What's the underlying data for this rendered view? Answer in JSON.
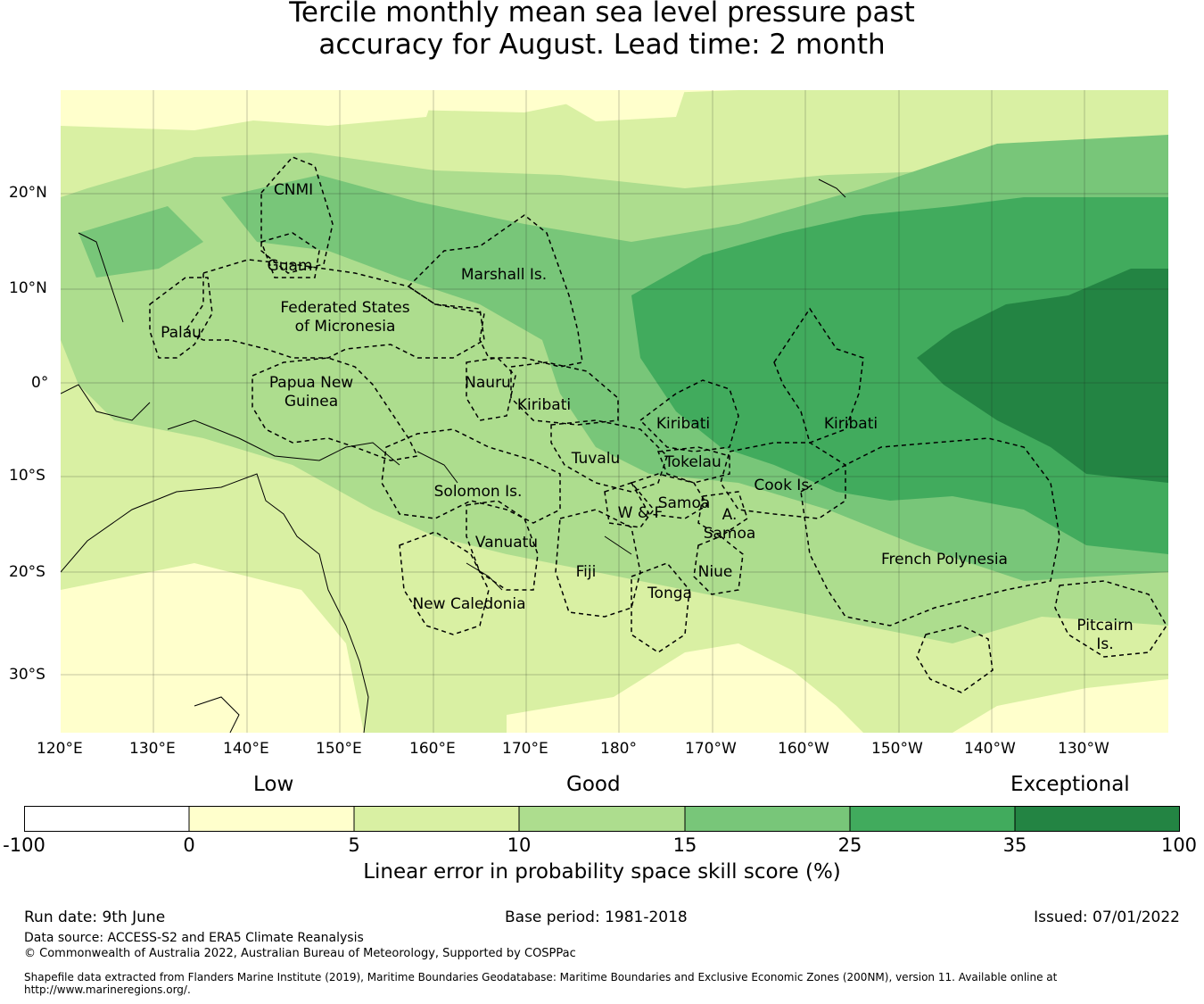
{
  "title": {
    "line1": "Tercile monthly mean sea level pressure past",
    "line2": "accuracy for August. Lead time: 2 month"
  },
  "map": {
    "lon_labels": [
      "120°E",
      "130°E",
      "140°E",
      "150°E",
      "160°E",
      "170°E",
      "180°",
      "170°W",
      "160°W",
      "150°W",
      "140°W",
      "130°W"
    ],
    "lat_labels": [
      "20°N",
      "10°N",
      "0°",
      "10°S",
      "20°S",
      "30°S"
    ],
    "regions": [
      {
        "id": "cnmi",
        "name": "CNMI"
      },
      {
        "id": "guam",
        "name": "Guam"
      },
      {
        "id": "marshall",
        "name": "Marshall Is."
      },
      {
        "id": "fsm1",
        "name": "Federated States"
      },
      {
        "id": "fsm2",
        "name": "of Micronesia"
      },
      {
        "id": "palau",
        "name": "Palau"
      },
      {
        "id": "png1",
        "name": "Papua New"
      },
      {
        "id": "png2",
        "name": "Guinea"
      },
      {
        "id": "nauru",
        "name": "Nauru"
      },
      {
        "id": "kiribati_w",
        "name": "Kiribati"
      },
      {
        "id": "kiribati_c",
        "name": "Kiribati"
      },
      {
        "id": "kiribati_e",
        "name": "Kiribati"
      },
      {
        "id": "tuvalu",
        "name": "Tuvalu"
      },
      {
        "id": "tokelau",
        "name": "Tokelau"
      },
      {
        "id": "solomon",
        "name": "Solomon Is."
      },
      {
        "id": "cook",
        "name": "Cook Is."
      },
      {
        "id": "samoa",
        "name": "Samoa"
      },
      {
        "id": "wf",
        "name": "W & F"
      },
      {
        "id": "asamoa1",
        "name": "A."
      },
      {
        "id": "asamoa2",
        "name": "Samoa"
      },
      {
        "id": "vanuatu",
        "name": "Vanuatu"
      },
      {
        "id": "fiji",
        "name": "Fiji"
      },
      {
        "id": "niue",
        "name": "Niue"
      },
      {
        "id": "frpoly",
        "name": "French Polynesia"
      },
      {
        "id": "tonga",
        "name": "Tonga"
      },
      {
        "id": "newcal",
        "name": "New Caledonia"
      },
      {
        "id": "pitcairn1",
        "name": "Pitcairn"
      },
      {
        "id": "pitcairn2",
        "name": "Is."
      }
    ]
  },
  "colorbar": {
    "categories": {
      "low": "Low",
      "good": "Good",
      "exceptional": "Exceptional"
    },
    "ticks": [
      "-100",
      "0",
      "5",
      "10",
      "15",
      "25",
      "35",
      "100"
    ],
    "colors": [
      "#ffffff",
      "#ffffcc",
      "#d9f0a3",
      "#addd8e",
      "#78c679",
      "#41ab5d",
      "#238443"
    ],
    "label": "Linear error in probability space skill score (%)"
  },
  "footer": {
    "run_date": "Run date: 9th June",
    "base_period": "Base period: 1981-2018",
    "issued": "Issued: 07/01/2022",
    "data_source": "Data source: ACCESS-S2 and ERA5 Climate Reanalysis",
    "copyright": "© Commonwealth of Australia 2022, Australian Bureau of Meteorology, Supported by COSPPac",
    "shapefile_1": "Shapefile data extracted from Flanders Marine Institute (2019), Maritime Boundaries Geodatabase: Maritime Boundaries and Exclusive Economic Zones (200NM), version 11. Available online at",
    "shapefile_2": "http://www.marineregions.org/."
  }
}
